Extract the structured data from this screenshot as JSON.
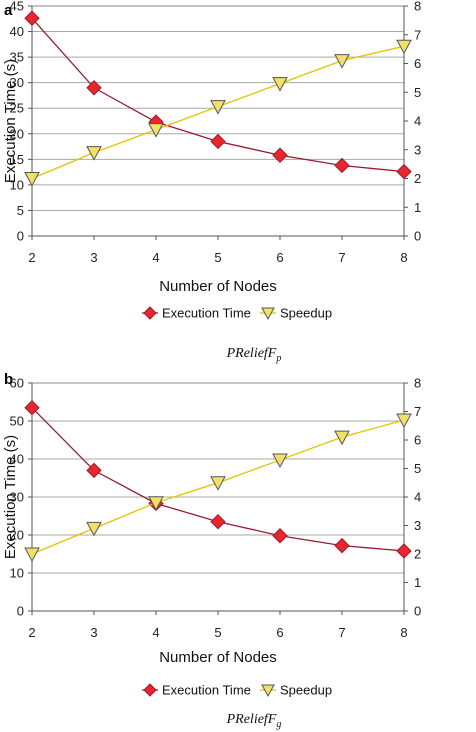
{
  "colors": {
    "execution_line": "#9b1b2e",
    "execution_marker": "#e8262b",
    "speedup_line": "#e6c200",
    "speedup_marker": "#f1e06a",
    "grid": "#a8a8a8"
  },
  "chart_data": [
    {
      "type": "line",
      "panel_label": "a",
      "caption": "PReliefF",
      "caption_sub": "p",
      "xlabel": "Number of Nodes",
      "ylabel_left": "Execution Time (s)",
      "x": [
        2,
        3,
        4,
        5,
        6,
        7,
        8
      ],
      "xlim": [
        2,
        8
      ],
      "ylim_left": [
        0,
        45
      ],
      "ylim_right": [
        0,
        8
      ],
      "yticks_left": [
        0,
        5,
        10,
        15,
        20,
        25,
        30,
        35,
        40,
        45
      ],
      "yticks_right": [
        0,
        1,
        2,
        3,
        4,
        5,
        6,
        7,
        8
      ],
      "grid": true,
      "legend_position": "bottom",
      "series": [
        {
          "name": "Execution Time",
          "axis": "left",
          "marker": "diamond",
          "values": [
            42.6,
            29.0,
            22.3,
            18.5,
            15.8,
            13.8,
            12.6
          ]
        },
        {
          "name": "Speedup",
          "axis": "right",
          "marker": "triangle-down",
          "values": [
            2.0,
            2.9,
            3.7,
            4.5,
            5.3,
            6.1,
            6.6
          ]
        }
      ]
    },
    {
      "type": "line",
      "panel_label": "b",
      "caption": "PReliefF",
      "caption_sub": "g",
      "xlabel": "Number of Nodes",
      "ylabel_left": "Execution Time (s)",
      "x": [
        2,
        3,
        4,
        5,
        6,
        7,
        8
      ],
      "xlim": [
        2,
        8
      ],
      "ylim_left": [
        0,
        60
      ],
      "ylim_right": [
        0,
        8
      ],
      "yticks_left": [
        0,
        10,
        20,
        30,
        40,
        50,
        60
      ],
      "yticks_right": [
        0,
        1,
        2,
        3,
        4,
        5,
        6,
        7,
        8
      ],
      "grid": true,
      "legend_position": "bottom",
      "series": [
        {
          "name": "Execution Time",
          "axis": "left",
          "marker": "diamond",
          "values": [
            53.5,
            37.0,
            28.3,
            23.5,
            19.8,
            17.2,
            15.8
          ]
        },
        {
          "name": "Speedup",
          "axis": "right",
          "marker": "triangle-down",
          "values": [
            2.0,
            2.9,
            3.8,
            4.5,
            5.3,
            6.1,
            6.7
          ]
        }
      ]
    }
  ]
}
